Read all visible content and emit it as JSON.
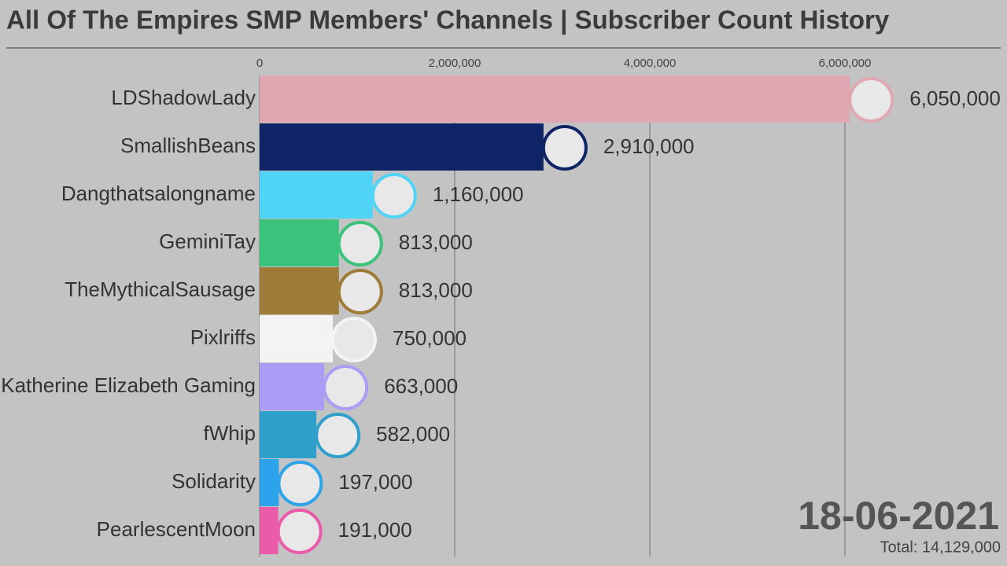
{
  "chart_data": {
    "type": "bar",
    "orientation": "horizontal",
    "title": "All Of The Empires SMP Members' Channels | Subscriber Count History",
    "categories": [
      "LDShadowLady",
      "SmallishBeans",
      "Dangthatsalongname",
      "GeminiTay",
      "TheMythicalSausage",
      "Pixlriffs",
      "Katherine Elizabeth Gaming",
      "fWhip",
      "Solidarity",
      "PearlescentMoon"
    ],
    "values": [
      6050000,
      2910000,
      1160000,
      813000,
      813000,
      750000,
      663000,
      582000,
      197000,
      191000
    ],
    "value_labels": [
      "6,050,000",
      "2,910,000",
      "1,160,000",
      "813,000",
      "813,000",
      "750,000",
      "663,000",
      "582,000",
      "197,000",
      "191,000"
    ],
    "colors": [
      "#dfa7b1",
      "#0f2466",
      "#4fd4f6",
      "#3bc27b",
      "#9e7b37",
      "#f3f3f3",
      "#aa9df6",
      "#2f9fcc",
      "#2ca3ea",
      "#ea5ba9"
    ],
    "xlim": [
      0,
      7600000
    ],
    "xticks": [
      0,
      {
        "value": 2000000,
        "label": "2,000,000"
      },
      {
        "value": 4000000,
        "label": "4,000,000"
      },
      {
        "value": 6000000,
        "label": "6,000,000"
      }
    ],
    "grid": true,
    "date": "18-06-2021",
    "total": "Total: 14,129,000"
  }
}
